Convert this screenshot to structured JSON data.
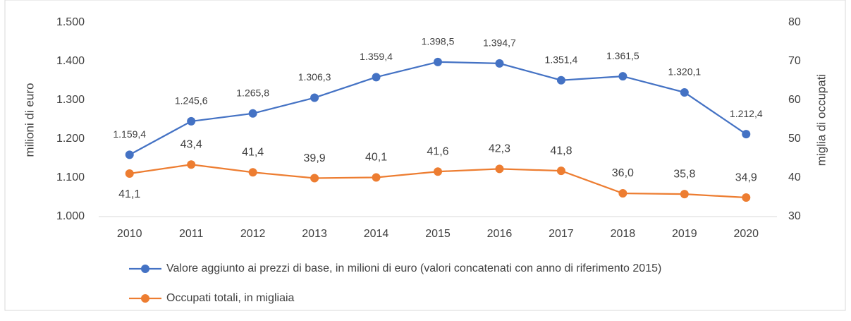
{
  "chart_data": {
    "type": "line",
    "categories": [
      "2010",
      "2011",
      "2012",
      "2013",
      "2014",
      "2015",
      "2016",
      "2017",
      "2018",
      "2019",
      "2020"
    ],
    "series": [
      {
        "name": "Valore aggiunto ai prezzi di base, in milioni di euro (valori concatenati con anno di riferimento 2015)",
        "color": "#4472c4",
        "values": [
          1159.4,
          1245.6,
          1265.8,
          1306.3,
          1359.4,
          1398.5,
          1394.7,
          1351.4,
          1361.5,
          1320.1,
          1212.4
        ],
        "value_labels": [
          "1.159,4",
          "1.245,6",
          "1.265,8",
          "1.306,3",
          "1.359,4",
          "1.398,5",
          "1.394,7",
          "1.351,4",
          "1.361,5",
          "1.320,1",
          "1.212,4"
        ]
      },
      {
        "name": "Occupati totali, in migliaia",
        "color": "#ed7d31",
        "axis": "y2",
        "values": [
          41.1,
          43.4,
          41.4,
          39.9,
          40.1,
          41.6,
          42.3,
          41.8,
          36.0,
          35.8,
          34.9
        ],
        "value_labels": [
          "41,1",
          "43,4",
          "41,4",
          "39,9",
          "40,1",
          "41,6",
          "42,3",
          "41,8",
          "36,0",
          "35,8",
          "34,9"
        ]
      }
    ],
    "ylabel": "milioni di euro",
    "y2label": "miglia di occupati",
    "ylim": [
      1000,
      1500
    ],
    "yticks": [
      {
        "value": 1000,
        "label": "1.000"
      },
      {
        "value": 1100,
        "label": "1.100"
      },
      {
        "value": 1200,
        "label": "1.200"
      },
      {
        "value": 1300,
        "label": "1.300"
      },
      {
        "value": 1400,
        "label": "1.400"
      },
      {
        "value": 1500,
        "label": "1.500"
      }
    ],
    "y2lim": [
      30,
      80
    ],
    "y2ticks": [
      30,
      40,
      50,
      60,
      70,
      80
    ],
    "grid": false
  }
}
